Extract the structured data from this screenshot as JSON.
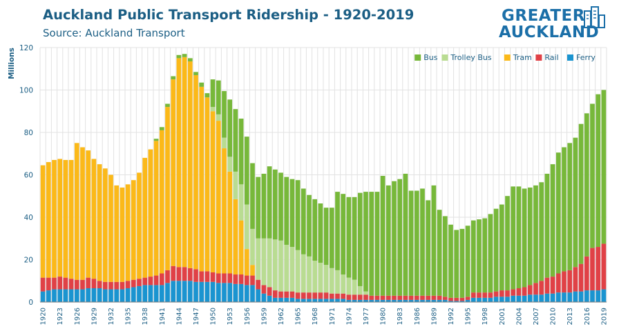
{
  "title": "Auckland Public Transport Ridership - 1920-2019",
  "subtitle": "Source: Auckland Transport",
  "logo": {
    "line1": "GREATER",
    "line2": "AUCKLAND",
    "icon": "city-buildings-icon"
  },
  "colors": {
    "Bus": "#77b83a",
    "Trolley Bus": "#b9dc92",
    "Tram": "#fbb919",
    "Rail": "#e04146",
    "Ferry": "#1a94d0",
    "grid": "#e2e2e2",
    "title": "#1b5e84"
  },
  "chart_data": {
    "type": "bar",
    "stacked": true,
    "ylabel": "Millions",
    "ylim": [
      0,
      120
    ],
    "yticks": [
      0,
      20,
      40,
      60,
      80,
      100,
      120
    ],
    "grid": true,
    "legend_position": "top-right",
    "x": [
      1920,
      1921,
      1922,
      1923,
      1924,
      1925,
      1926,
      1927,
      1928,
      1929,
      1930,
      1931,
      1932,
      1933,
      1934,
      1935,
      1936,
      1937,
      1938,
      1939,
      1940,
      1941,
      1942,
      1943,
      1944,
      1945,
      1946,
      1947,
      1948,
      1949,
      1950,
      1951,
      1952,
      1953,
      1954,
      1955,
      1956,
      1957,
      1958,
      1959,
      1960,
      1961,
      1962,
      1963,
      1964,
      1965,
      1966,
      1967,
      1968,
      1969,
      1970,
      1971,
      1972,
      1973,
      1974,
      1975,
      1976,
      1977,
      1978,
      1979,
      1980,
      1981,
      1982,
      1983,
      1984,
      1985,
      1986,
      1987,
      1988,
      1989,
      1990,
      1991,
      1992,
      1993,
      1994,
      1995,
      1996,
      1997,
      1998,
      1999,
      2000,
      2001,
      2002,
      2003,
      2004,
      2005,
      2006,
      2007,
      2008,
      2009,
      2010,
      2011,
      2012,
      2013,
      2014,
      2015,
      2016,
      2017,
      2018,
      2019
    ],
    "xtick_labels": [
      "1920",
      "1923",
      "1926",
      "1929",
      "1932",
      "1935",
      "1938",
      "1941",
      "1944",
      "1947",
      "1950",
      "1953",
      "1956",
      "1959",
      "1962",
      "1965",
      "1968",
      "1971",
      "1974",
      "1977",
      "1980",
      "1983",
      "1986",
      "1989",
      "1992",
      "1995",
      "1998",
      "2001",
      "2004",
      "2007",
      "2010",
      "2013",
      "2016",
      "2019"
    ],
    "series": [
      {
        "name": "Ferry",
        "values": [
          5,
          5.5,
          6,
          6,
          6,
          6,
          6,
          6,
          6.5,
          6.5,
          6.5,
          6,
          6,
          6,
          6,
          6.5,
          7,
          7.5,
          8,
          8,
          8,
          8,
          9,
          10,
          10,
          10,
          10,
          9.5,
          9.5,
          9.5,
          9.5,
          9,
          9,
          9,
          8.5,
          8.5,
          8,
          8,
          6,
          4,
          3,
          2,
          2,
          2,
          2,
          1.5,
          1.5,
          1.5,
          1.5,
          1.5,
          1.5,
          1.5,
          1.5,
          1.5,
          1,
          1,
          1,
          1,
          1,
          1,
          1,
          1,
          1,
          1,
          1,
          1,
          1,
          1,
          1,
          1,
          1,
          1,
          0.5,
          0.5,
          0.5,
          1,
          2,
          2,
          2,
          2,
          2.5,
          2.5,
          2.5,
          3,
          3,
          3,
          3.5,
          3.5,
          3.5,
          4,
          4,
          4.5,
          4.5,
          4.5,
          5,
          5,
          5.5,
          5.5,
          5.5,
          6
        ]
      },
      {
        "name": "Rail",
        "values": [
          6.5,
          6,
          5.5,
          6,
          5.5,
          5,
          4.5,
          4.5,
          5,
          4.5,
          3.5,
          3.5,
          3.5,
          3.5,
          3.5,
          3.5,
          3.5,
          3.5,
          3.5,
          4,
          4.5,
          5.5,
          6,
          7,
          6.5,
          6.5,
          6,
          6,
          5,
          5,
          4.5,
          4.5,
          4.5,
          4.5,
          4.5,
          4.5,
          4.5,
          4.5,
          4.5,
          4,
          4,
          3.5,
          3,
          3,
          3,
          3,
          3,
          3,
          3,
          3,
          3,
          2.5,
          2.5,
          2.5,
          2.5,
          2.5,
          2.5,
          2.5,
          2,
          2,
          2,
          2,
          2,
          2,
          2,
          2,
          2,
          2,
          2,
          2,
          2,
          1.5,
          1.5,
          1.5,
          1.5,
          1.5,
          2.5,
          2.5,
          2.5,
          2.5,
          2.5,
          3,
          3,
          3,
          3.5,
          4,
          4.5,
          5.5,
          6.5,
          7.5,
          8,
          9,
          10,
          10.5,
          11.5,
          13,
          16,
          20,
          20.5,
          21.5
        ]
      },
      {
        "name": "Tram",
        "values": [
          53,
          54.5,
          55.5,
          55.5,
          55.5,
          56,
          64.5,
          62.5,
          60,
          56.5,
          55,
          53.5,
          50.5,
          45.5,
          44.5,
          45.5,
          47,
          50,
          56.5,
          60,
          63.5,
          67.5,
          77,
          88,
          98.5,
          99,
          97.5,
          91.5,
          87,
          82,
          76,
          72,
          59,
          48,
          35.5,
          25.5,
          12.5,
          5,
          0,
          0,
          0,
          0,
          0,
          0,
          0,
          0,
          0,
          0,
          0,
          0,
          0,
          0,
          0,
          0,
          0,
          0,
          0,
          0,
          0,
          0,
          0,
          0,
          0,
          0,
          0,
          0,
          0,
          0,
          0,
          0,
          0,
          0,
          0,
          0,
          0,
          0,
          0,
          0,
          0,
          0,
          0,
          0,
          0,
          0,
          0,
          0,
          0,
          0,
          0,
          0,
          0,
          0,
          0,
          0,
          0,
          0,
          0,
          0,
          0,
          0
        ]
      },
      {
        "name": "Trolley Bus",
        "values": [
          0,
          0,
          0,
          0,
          0,
          0,
          0,
          0,
          0,
          0,
          0,
          0,
          0,
          0,
          0,
          0,
          0,
          0,
          0,
          0,
          0,
          0,
          0,
          0,
          0,
          0,
          0,
          0,
          0,
          0,
          2,
          3,
          5,
          7,
          13,
          17,
          21,
          17,
          19.5,
          22,
          23,
          24,
          24,
          22,
          21,
          20,
          18,
          17,
          15,
          14,
          13,
          12,
          11,
          9,
          8,
          7,
          4,
          1.5,
          0,
          0,
          0,
          0,
          0,
          0,
          0,
          0,
          0,
          0,
          0,
          0,
          0,
          0,
          0,
          0,
          0,
          0,
          0,
          0,
          0,
          0,
          0,
          0,
          0,
          0,
          0,
          0,
          0,
          0,
          0,
          0,
          0,
          0,
          0,
          0,
          0,
          0,
          0,
          0,
          0,
          0
        ]
      },
      {
        "name": "Bus",
        "values": [
          0,
          0,
          0,
          0,
          0,
          0,
          0,
          0,
          0,
          0,
          0,
          0,
          0,
          0,
          0,
          0,
          0,
          0,
          0,
          0,
          1,
          1.5,
          1.5,
          1.5,
          1.5,
          1.5,
          1.5,
          1.5,
          2,
          2,
          13,
          16,
          22,
          27,
          29.5,
          31,
          32,
          31,
          29,
          30.5,
          34,
          33,
          32,
          32,
          32,
          33,
          31,
          29,
          29,
          28,
          27,
          28.5,
          37,
          38,
          38,
          39,
          44,
          47,
          49,
          49,
          56.5,
          52,
          54,
          55,
          57.5,
          49.5,
          49.5,
          50.5,
          45,
          52,
          40.5,
          38,
          34.5,
          32,
          32.5,
          33.5,
          34,
          34.5,
          35,
          37,
          39,
          40.5,
          44.5,
          48.5,
          48,
          46.5,
          46,
          46,
          46.5,
          49,
          53,
          57,
          58.5,
          60,
          61,
          66,
          67.5,
          68,
          72,
          72.5
        ]
      }
    ]
  }
}
